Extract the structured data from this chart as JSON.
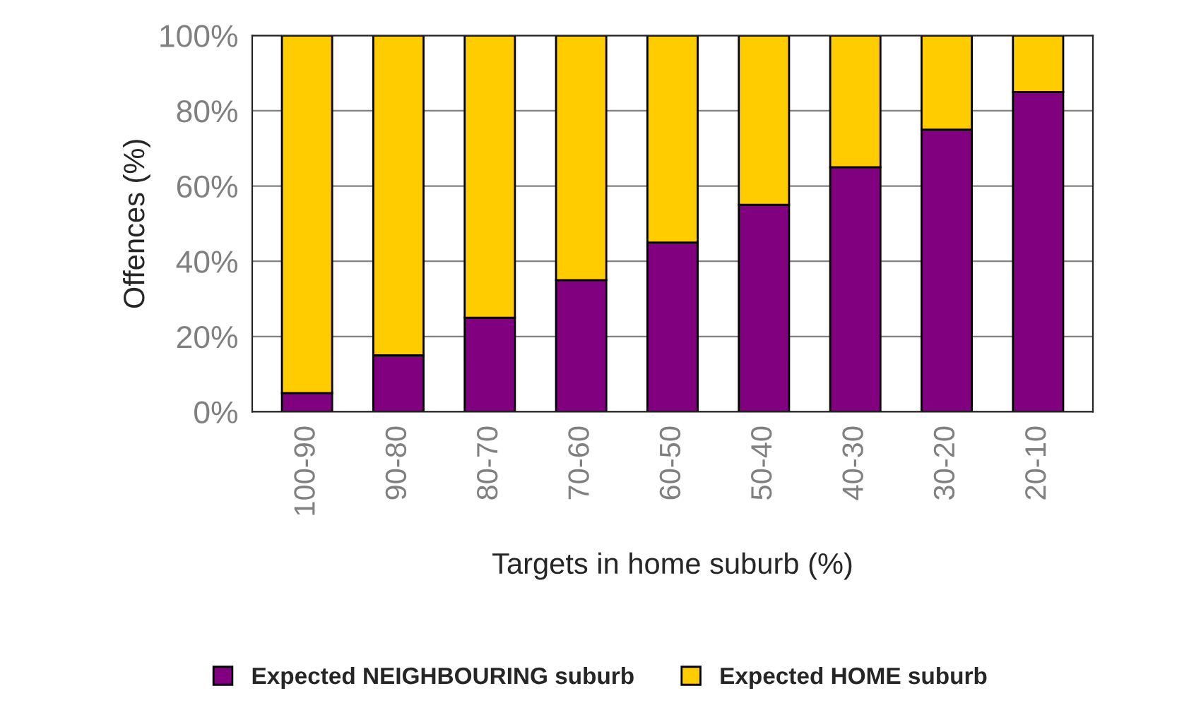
{
  "chart_data": {
    "type": "bar",
    "stacked": true,
    "xlabel": "Targets in home suburb (%)",
    "ylabel": "Offences (%)",
    "categories": [
      "100-90",
      "90-80",
      "80-70",
      "70-60",
      "60-50",
      "50-40",
      "40-30",
      "30-20",
      "20-10"
    ],
    "series": [
      {
        "name": "Expected NEIGHBOURING suburb",
        "color": "#800080",
        "values": [
          5,
          15,
          25,
          35,
          45,
          55,
          65,
          75,
          85
        ]
      },
      {
        "name": "Expected HOME suburb",
        "color": "#ffcc00",
        "values": [
          95,
          85,
          75,
          65,
          55,
          45,
          35,
          25,
          15
        ]
      }
    ],
    "ylim": [
      0,
      100
    ],
    "yticks": [
      {
        "value": 0,
        "label": "0%"
      },
      {
        "value": 20,
        "label": "20%"
      },
      {
        "value": 40,
        "label": "40%"
      },
      {
        "value": 60,
        "label": "60%"
      },
      {
        "value": 80,
        "label": "80%"
      },
      {
        "value": 100,
        "label": "100%"
      }
    ],
    "grid": "y",
    "legend": "bottom"
  }
}
